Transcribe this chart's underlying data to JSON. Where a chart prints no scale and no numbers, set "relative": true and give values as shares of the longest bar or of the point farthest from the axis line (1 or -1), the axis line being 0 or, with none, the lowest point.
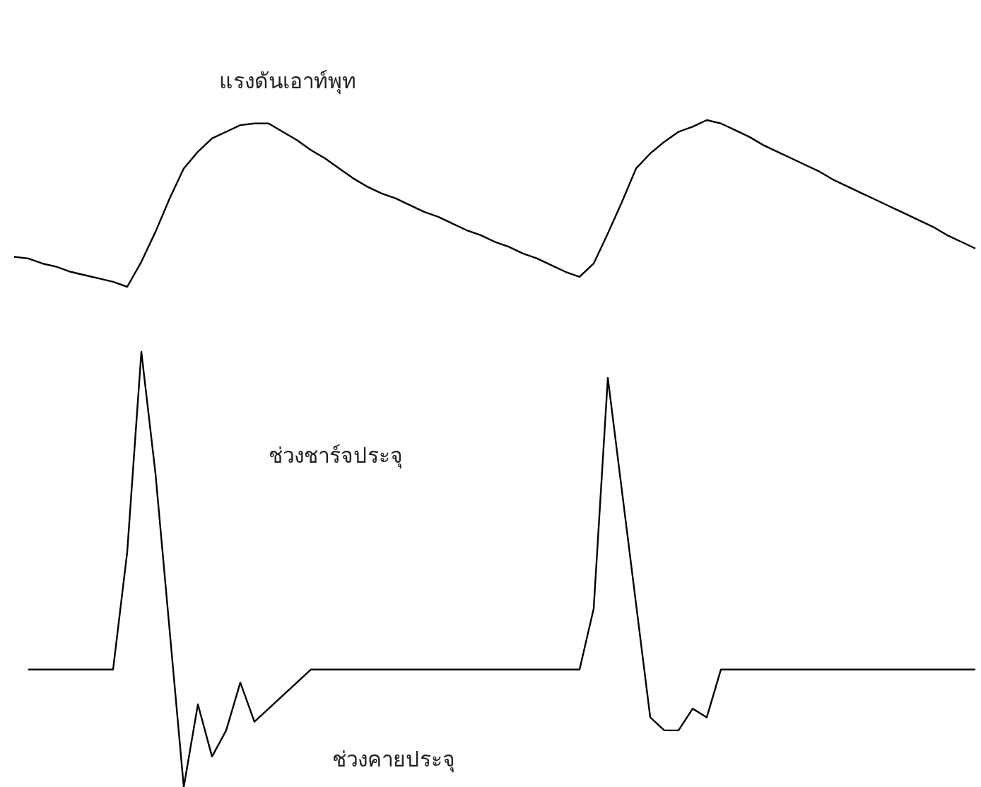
{
  "chart_data": [
    {
      "type": "line",
      "title": "แรงดันเอาท์พุท",
      "relative": true,
      "marker": "none",
      "categories": [
        null,
        null,
        null,
        null,
        null,
        null,
        null,
        null,
        null,
        null,
        null,
        null,
        null,
        null,
        null,
        null,
        null,
        null,
        null,
        null,
        null,
        null,
        null,
        null,
        null,
        null,
        null,
        null,
        null,
        null,
        null,
        null,
        null,
        null,
        null,
        null,
        null,
        null,
        null,
        null,
        null,
        null,
        null,
        null,
        null,
        null,
        null,
        null,
        null,
        null,
        null,
        null,
        null,
        null,
        null,
        null,
        null,
        null,
        null,
        null,
        null,
        null,
        null,
        null,
        null,
        null,
        null,
        null,
        null
      ],
      "series": [
        {
          "color": "#000000",
          "values": [
            0.18,
            0.17,
            0.14,
            0.12,
            0.09,
            0.07,
            0.05,
            0.03,
            0,
            0.15,
            0.33,
            0.53,
            0.71,
            0.81,
            0.89,
            0.93,
            0.97,
            0.98,
            0.98,
            0.93,
            0.88,
            0.82,
            0.77,
            0.71,
            0.65,
            0.6,
            0.56,
            0.53,
            0.49,
            0.45,
            0.42,
            0.38,
            0.34,
            0.31,
            0.27,
            0.24,
            0.2,
            0.17,
            0.13,
            0.09,
            0.06,
            0.14,
            0.32,
            0.51,
            0.71,
            0.8,
            0.87,
            0.93,
            0.96,
            1,
            0.98,
            0.94,
            0.9,
            0.85,
            0.81,
            0.77,
            0.73,
            0.69,
            0.64,
            0.6,
            0.56,
            0.52,
            0.48,
            0.44,
            0.4,
            0.36,
            0.31,
            0.27,
            0.23
          ]
        }
      ]
    },
    {
      "type": "line",
      "relative": true,
      "marker": "none",
      "annotations": [
        "ช่วงชาร์จประจุ",
        "ช่วงคายประจุ"
      ],
      "categories": [
        null,
        null,
        null,
        null,
        null,
        null,
        null,
        null,
        null,
        null,
        null,
        null,
        null,
        null,
        null,
        null,
        null,
        null,
        null,
        null,
        null,
        null,
        null,
        null,
        null,
        null,
        null,
        null,
        null,
        null,
        null,
        null,
        null,
        null,
        null,
        null,
        null,
        null,
        null,
        null,
        null,
        null,
        null,
        null,
        null,
        null,
        null,
        null,
        null,
        null,
        null,
        null,
        null,
        null,
        null,
        null,
        null,
        null,
        null,
        null,
        null,
        null,
        null,
        null,
        null,
        null,
        null,
        null,
        null
      ],
      "series": [
        {
          "color": "#000000",
          "values": [
            null,
            0.27,
            0.27,
            0.27,
            0.27,
            0.27,
            0.27,
            0.27,
            0.54,
            1,
            0.72,
            0.36,
            0,
            0.19,
            0.07,
            0.13,
            0.24,
            0.15,
            0.18,
            0.21,
            0.24,
            0.27,
            0.27,
            0.27,
            0.27,
            0.27,
            0.27,
            0.27,
            0.27,
            0.27,
            0.27,
            0.27,
            0.27,
            0.27,
            0.27,
            0.27,
            0.27,
            0.27,
            0.27,
            0.27,
            0.27,
            0.41,
            0.94,
            0.68,
            0.42,
            0.16,
            0.13,
            0.13,
            0.18,
            0.16,
            0.27,
            0.27,
            0.27,
            0.27,
            0.27,
            0.27,
            0.27,
            0.27,
            0.27,
            0.27,
            0.27,
            0.27,
            0.27,
            0.27,
            0.27,
            0.27,
            0.27,
            0.27,
            0.27
          ]
        }
      ]
    }
  ]
}
